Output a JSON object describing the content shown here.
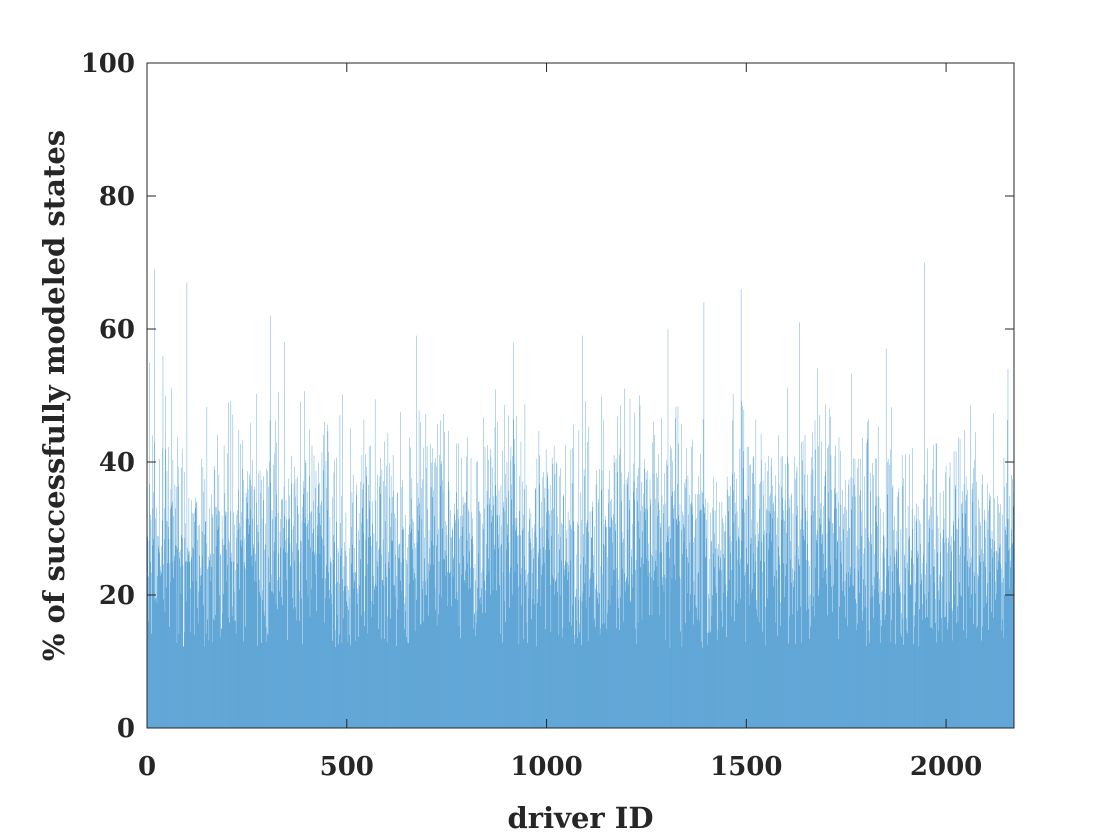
{
  "chart_data": {
    "type": "bar",
    "xlabel": "driver ID",
    "ylabel": "% of successfully modeled states",
    "xlim": [
      0,
      2170
    ],
    "ylim": [
      0,
      100
    ],
    "xticks": [
      0,
      500,
      1000,
      1500,
      2000
    ],
    "yticks": [
      0,
      20,
      40,
      60,
      80,
      100
    ],
    "series_color": "#0072BD",
    "grid": false,
    "n_bars": 2170,
    "x": [
      0,
      50,
      100,
      150,
      200,
      250,
      300,
      350,
      400,
      450,
      500,
      550,
      600,
      650,
      700,
      750,
      800,
      850,
      900,
      950,
      1000,
      1050,
      1100,
      1150,
      1200,
      1250,
      1300,
      1350,
      1400,
      1450,
      1500,
      1550,
      1600,
      1650,
      1700,
      1750,
      1800,
      1850,
      1900,
      1950,
      2000,
      2050,
      2100,
      2150
    ],
    "values": [
      27,
      29,
      28,
      27,
      29,
      30,
      28,
      30,
      29,
      28,
      27,
      28,
      29,
      28,
      30,
      31,
      29,
      30,
      31,
      31,
      30,
      29,
      28,
      27,
      29,
      30,
      32,
      30,
      28,
      27,
      29,
      30,
      29,
      30,
      31,
      30,
      28,
      27,
      26,
      25,
      26,
      27,
      27,
      28
    ],
    "value_spread": [
      8,
      9,
      8,
      9,
      9,
      8,
      9,
      9,
      8,
      9,
      9,
      9,
      9,
      9,
      9,
      9,
      9,
      9,
      9,
      9,
      9,
      9,
      9,
      9,
      9,
      9,
      9,
      9,
      9,
      9,
      9,
      9,
      9,
      9,
      9,
      9,
      9,
      9,
      8,
      8,
      8,
      8,
      8,
      8
    ],
    "peaks": [
      {
        "x": 7,
        "y": 55
      },
      {
        "x": 19,
        "y": 69
      },
      {
        "x": 40,
        "y": 56
      },
      {
        "x": 100,
        "y": 67
      },
      {
        "x": 310,
        "y": 62
      },
      {
        "x": 344,
        "y": 58
      },
      {
        "x": 675,
        "y": 59
      },
      {
        "x": 917,
        "y": 58
      },
      {
        "x": 1090,
        "y": 59
      },
      {
        "x": 1304,
        "y": 60
      },
      {
        "x": 1394,
        "y": 64
      },
      {
        "x": 1487,
        "y": 66
      },
      {
        "x": 1633,
        "y": 61
      },
      {
        "x": 1850,
        "y": 57
      },
      {
        "x": 1946,
        "y": 70
      },
      {
        "x": 2155,
        "y": 54
      }
    ],
    "min_observed": 12
  }
}
